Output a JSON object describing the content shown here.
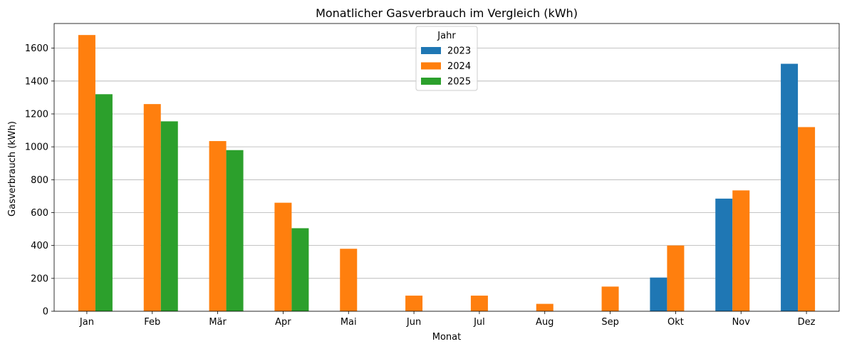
{
  "chart_data": {
    "type": "bar",
    "title": "Monatlicher Gasverbrauch im Vergleich (kWh)",
    "xlabel": "Monat",
    "ylabel": "Gasverbrauch (kWh)",
    "categories": [
      "Jan",
      "Feb",
      "Mär",
      "Apr",
      "Mai",
      "Jun",
      "Jul",
      "Aug",
      "Sep",
      "Okt",
      "Nov",
      "Dez"
    ],
    "ylim": [
      0,
      1750
    ],
    "yticks": [
      0,
      200,
      400,
      600,
      800,
      1000,
      1200,
      1400,
      1600
    ],
    "grid": "y",
    "legend": {
      "title": "Jahr",
      "placement": "top-center"
    },
    "series": [
      {
        "name": "2023",
        "color": "#1f77b4",
        "values": [
          0,
          0,
          0,
          0,
          0,
          0,
          0,
          0,
          0,
          205,
          685,
          1505
        ]
      },
      {
        "name": "2024",
        "color": "#ff7f0e",
        "values": [
          1680,
          1260,
          1035,
          660,
          380,
          95,
          95,
          45,
          150,
          400,
          735,
          1120
        ]
      },
      {
        "name": "2025",
        "color": "#2ca02c",
        "values": [
          1320,
          1155,
          980,
          505,
          0,
          0,
          0,
          0,
          0,
          0,
          0,
          0
        ]
      }
    ]
  }
}
